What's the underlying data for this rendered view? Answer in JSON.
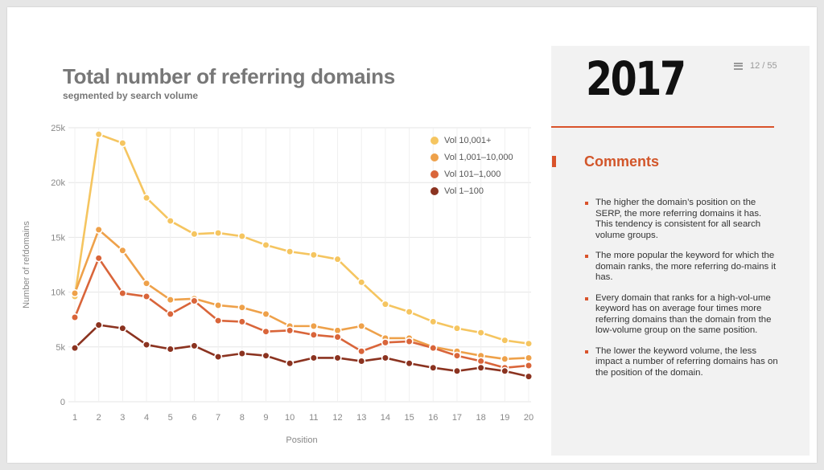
{
  "slide": {
    "year": "2017",
    "page_indicator": "12 / 55",
    "icons": {
      "menu": "menu-icon"
    }
  },
  "comments": {
    "title": "Comments",
    "items": [
      "The higher the domain’s position on the SERP, the more referring domains it has. This tendency is consistent for all search volume groups.",
      "The more popular the keyword for which the domain ranks, the more referring do-mains it has.",
      "Every domain that ranks for a high-vol-ume keyword has on average four times more referring domains than the domain from the low-volume group on the same position.",
      "The lower the keyword volume, the less impact a number of referring domains has on the position of the domain."
    ]
  },
  "colors": {
    "accent": "#d9532b"
  },
  "chart_data": {
    "type": "line",
    "title": "Total number of referring domains",
    "subtitle": "segmented by search volume",
    "xlabel": "Position",
    "ylabel": "Number of refdomains",
    "x": [
      1,
      2,
      3,
      4,
      5,
      6,
      7,
      8,
      9,
      10,
      11,
      12,
      13,
      14,
      15,
      16,
      17,
      18,
      19,
      20
    ],
    "ylim": [
      0,
      25000
    ],
    "yticks": [
      0,
      5000,
      10000,
      15000,
      20000,
      25000
    ],
    "ytick_labels": [
      "0",
      "5k",
      "10k",
      "15k",
      "20k",
      "25k"
    ],
    "grid": true,
    "legend_position": "top-right",
    "series": [
      {
        "name": "Vol 10,001+",
        "color": "#f5c560",
        "values": [
          9600,
          24400,
          23600,
          18600,
          16500,
          15300,
          15400,
          15100,
          14300,
          13700,
          13400,
          13000,
          10900,
          8900,
          8200,
          7300,
          6700,
          6300,
          5600,
          5300
        ]
      },
      {
        "name": "Vol 1,001–10,000",
        "color": "#eea14a",
        "values": [
          9900,
          15700,
          13800,
          10800,
          9300,
          9400,
          8800,
          8600,
          8000,
          6900,
          6900,
          6500,
          6900,
          5800,
          5800,
          5000,
          4600,
          4200,
          3900,
          4000
        ]
      },
      {
        "name": "Vol 101–1,000",
        "color": "#d9653a",
        "values": [
          7700,
          13100,
          9900,
          9600,
          8000,
          9200,
          7400,
          7300,
          6400,
          6500,
          6100,
          5900,
          4600,
          5400,
          5500,
          4900,
          4200,
          3700,
          3100,
          3300
        ]
      },
      {
        "name": "Vol 1–100",
        "color": "#8b3320",
        "values": [
          4900,
          7000,
          6700,
          5200,
          4800,
          5100,
          4100,
          4400,
          4200,
          3500,
          4000,
          4000,
          3700,
          4000,
          3500,
          3100,
          2800,
          3100,
          2800,
          2300
        ]
      }
    ]
  }
}
